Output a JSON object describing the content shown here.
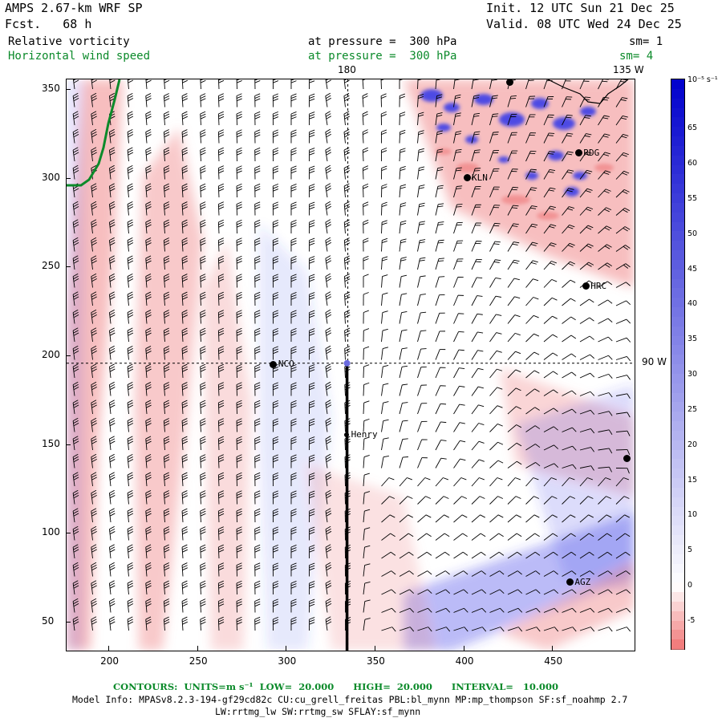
{
  "header": {
    "model": "AMPS 2.67-km WRF SP",
    "forecast": "Fcst.   68 h",
    "init": "Init. 12 UTC Sun 21 Dec 25",
    "valid": "Valid. 08 UTC Wed 24 Dec 25",
    "field1": "Relative vorticity",
    "field1_level": "at pressure =  300 hPa",
    "field1_sm": "sm= 1",
    "field2": "Horizontal wind speed",
    "field2_level": "at pressure =  300 hPa",
    "field2_sm": "sm= 4"
  },
  "map": {
    "lon_labels": [
      "180",
      "135 W",
      "90 W"
    ],
    "x_ticks": [
      "200",
      "250",
      "300",
      "350",
      "400",
      "450"
    ],
    "y_ticks": [
      "350",
      "300",
      "250",
      "200",
      "150",
      "100",
      "50"
    ],
    "x_range": [
      176,
      496
    ],
    "y_range": [
      34,
      356
    ],
    "stations": [
      {
        "name": "KLN",
        "x": 402,
        "y": 300
      },
      {
        "name": "RDG",
        "x": 465,
        "y": 314
      },
      {
        "name": "HRC",
        "x": 469,
        "y": 239
      },
      {
        "name": "NCO",
        "x": 293,
        "y": 195
      },
      {
        "name": "Henry",
        "x": 334,
        "y": 155
      },
      {
        "name": "",
        "x": 492,
        "y": 142
      },
      {
        "name": "AGZ",
        "x": 460,
        "y": 72
      },
      {
        "name": "",
        "x": 426,
        "y": 354
      }
    ],
    "colors": {
      "positive": "#f0888a",
      "negative": "#3a3ee8",
      "coast": "#0b8a2a"
    }
  },
  "colorbar": {
    "unit": "10⁻⁵ s⁻¹",
    "labels": [
      "65",
      "60",
      "55",
      "50",
      "45",
      "40",
      "35",
      "30",
      "25",
      "20",
      "15",
      "10",
      "5",
      "0",
      "-5"
    ],
    "range": [
      -9,
      72
    ]
  },
  "footer": {
    "contours": "CONTOURS:  UNITS=m s⁻¹  LOW=  20.000      HIGH=  20.000      INTERVAL=   10.000",
    "model_info": "Model Info: MPASv8.2.3-194-gf29cd82c CU:cu_grell_freitas PBL:bl_mynn MP:mp_thompson SF:sf_noahmp 2.7",
    "model_info2": "LW:rrtmg_lw SW:rrtmg_sw SFLAY:sf_mynn"
  }
}
